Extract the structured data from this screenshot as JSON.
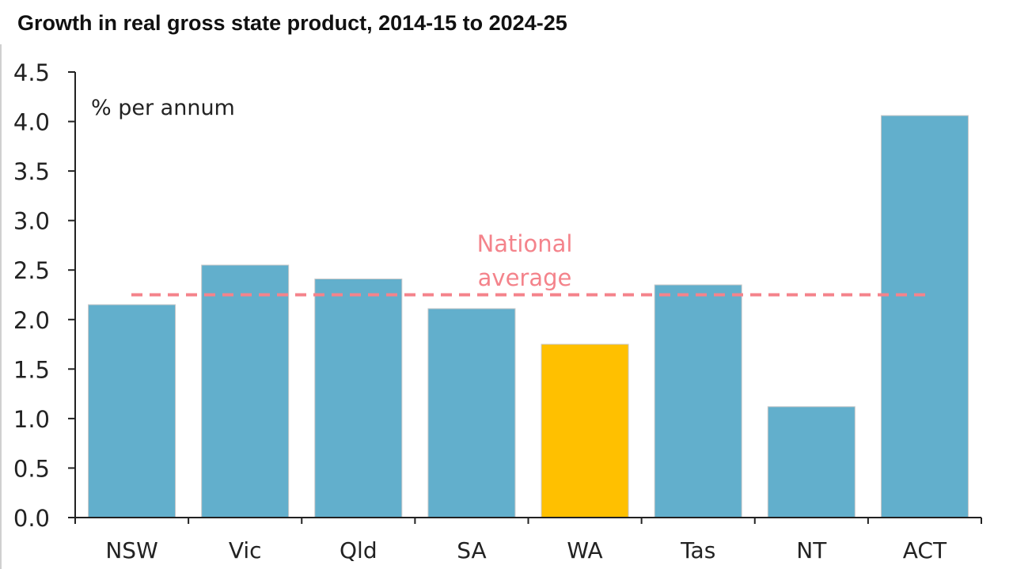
{
  "chart_data": {
    "type": "bar",
    "title": "Growth in real gross state product, 2014-15 to 2024-25",
    "ylabel": "% per annum",
    "xlabel": "",
    "categories": [
      "NSW",
      "Vic",
      "Qld",
      "SA",
      "WA",
      "Tas",
      "NT",
      "ACT"
    ],
    "values": [
      2.15,
      2.55,
      2.41,
      2.11,
      1.75,
      2.35,
      1.12,
      4.06
    ],
    "highlight": "WA",
    "ylim": [
      0,
      4.5
    ],
    "yticks": [
      "0.0",
      "0.5",
      "1.0",
      "1.5",
      "2.0",
      "2.5",
      "3.0",
      "3.5",
      "4.0",
      "4.5"
    ],
    "reference_line": {
      "label_line1": "National",
      "label_line2": "average",
      "value": 2.25
    },
    "colors": {
      "bar": "#62afcc",
      "highlight": "#ffc000",
      "reference": "#f4838b"
    },
    "grid": false
  }
}
